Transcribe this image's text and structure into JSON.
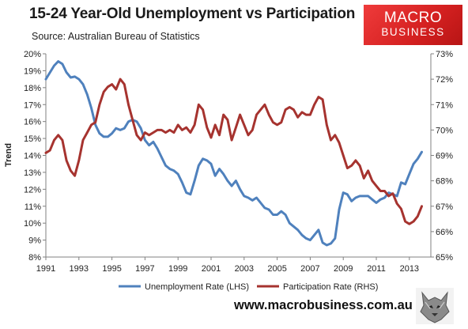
{
  "header": {
    "title": "15-24 Year-Old Unemployment vs Participation",
    "subtitle": "Source: Australian Bureau of Statistics"
  },
  "logo": {
    "line1": "MACRO",
    "line2": "BUSINESS",
    "bg": "#d42020"
  },
  "footer": {
    "url": "www.macrobusiness.com.au"
  },
  "chart_data": {
    "type": "line",
    "ylabel": "Trend",
    "x_ticks": [
      "1991",
      "1993",
      "1995",
      "1997",
      "1999",
      "2001",
      "2003",
      "2005",
      "2007",
      "2009",
      "2011",
      "2013"
    ],
    "xlim": [
      1991,
      2014.3
    ],
    "y_left": {
      "ticks": [
        "8%",
        "9%",
        "10%",
        "11%",
        "12%",
        "13%",
        "14%",
        "15%",
        "16%",
        "17%",
        "18%",
        "19%",
        "20%"
      ],
      "lim": [
        8,
        20
      ]
    },
    "y_right": {
      "ticks": [
        "65%",
        "66%",
        "67%",
        "68%",
        "69%",
        "70%",
        "71%",
        "72%",
        "73%"
      ],
      "lim": [
        65,
        73
      ]
    },
    "grid": false,
    "legend_position": "bottom",
    "series": [
      {
        "name": "Unemployment Rate (LHS)",
        "axis": "left",
        "color": "#4f81bd",
        "points": [
          [
            1991.0,
            18.5
          ],
          [
            1991.25,
            18.9
          ],
          [
            1991.5,
            19.3
          ],
          [
            1991.75,
            19.55
          ],
          [
            1992.0,
            19.4
          ],
          [
            1992.25,
            18.9
          ],
          [
            1992.5,
            18.6
          ],
          [
            1992.75,
            18.65
          ],
          [
            1993.0,
            18.5
          ],
          [
            1993.25,
            18.2
          ],
          [
            1993.5,
            17.6
          ],
          [
            1993.75,
            16.8
          ],
          [
            1994.0,
            15.8
          ],
          [
            1994.25,
            15.3
          ],
          [
            1994.5,
            15.1
          ],
          [
            1994.75,
            15.1
          ],
          [
            1995.0,
            15.3
          ],
          [
            1995.25,
            15.6
          ],
          [
            1995.5,
            15.5
          ],
          [
            1995.75,
            15.6
          ],
          [
            1996.0,
            16.0
          ],
          [
            1996.25,
            16.1
          ],
          [
            1996.5,
            16.0
          ],
          [
            1996.75,
            15.6
          ],
          [
            1997.0,
            14.9
          ],
          [
            1997.25,
            14.6
          ],
          [
            1997.5,
            14.8
          ],
          [
            1997.75,
            14.4
          ],
          [
            1998.0,
            13.9
          ],
          [
            1998.25,
            13.4
          ],
          [
            1998.5,
            13.2
          ],
          [
            1998.75,
            13.1
          ],
          [
            1999.0,
            12.9
          ],
          [
            1999.25,
            12.4
          ],
          [
            1999.5,
            11.8
          ],
          [
            1999.75,
            11.7
          ],
          [
            2000.0,
            12.5
          ],
          [
            2000.25,
            13.4
          ],
          [
            2000.5,
            13.8
          ],
          [
            2000.75,
            13.7
          ],
          [
            2001.0,
            13.5
          ],
          [
            2001.25,
            12.8
          ],
          [
            2001.5,
            13.2
          ],
          [
            2001.75,
            12.9
          ],
          [
            2002.0,
            12.5
          ],
          [
            2002.25,
            12.2
          ],
          [
            2002.5,
            12.5
          ],
          [
            2002.75,
            12.0
          ],
          [
            2003.0,
            11.6
          ],
          [
            2003.25,
            11.5
          ],
          [
            2003.5,
            11.35
          ],
          [
            2003.75,
            11.5
          ],
          [
            2004.0,
            11.2
          ],
          [
            2004.25,
            10.9
          ],
          [
            2004.5,
            10.8
          ],
          [
            2004.75,
            10.5
          ],
          [
            2005.0,
            10.5
          ],
          [
            2005.25,
            10.7
          ],
          [
            2005.5,
            10.5
          ],
          [
            2005.75,
            10.0
          ],
          [
            2006.0,
            9.8
          ],
          [
            2006.25,
            9.6
          ],
          [
            2006.5,
            9.3
          ],
          [
            2006.75,
            9.1
          ],
          [
            2007.0,
            9.0
          ],
          [
            2007.25,
            9.3
          ],
          [
            2007.5,
            9.6
          ],
          [
            2007.75,
            8.85
          ],
          [
            2008.0,
            8.7
          ],
          [
            2008.25,
            8.8
          ],
          [
            2008.5,
            9.1
          ],
          [
            2008.75,
            10.8
          ],
          [
            2009.0,
            11.8
          ],
          [
            2009.25,
            11.7
          ],
          [
            2009.5,
            11.3
          ],
          [
            2009.75,
            11.5
          ],
          [
            2010.0,
            11.6
          ],
          [
            2010.25,
            11.6
          ],
          [
            2010.5,
            11.6
          ],
          [
            2010.75,
            11.4
          ],
          [
            2011.0,
            11.2
          ],
          [
            2011.25,
            11.4
          ],
          [
            2011.5,
            11.5
          ],
          [
            2011.75,
            11.8
          ],
          [
            2012.0,
            11.7
          ],
          [
            2012.25,
            11.6
          ],
          [
            2012.5,
            12.4
          ],
          [
            2012.75,
            12.3
          ],
          [
            2013.0,
            12.9
          ],
          [
            2013.25,
            13.5
          ],
          [
            2013.5,
            13.8
          ],
          [
            2013.75,
            14.2
          ]
        ]
      },
      {
        "name": "Participation Rate (RHS)",
        "axis": "right",
        "color": "#a6332f",
        "points": [
          [
            1991.0,
            69.1
          ],
          [
            1991.25,
            69.2
          ],
          [
            1991.5,
            69.6
          ],
          [
            1991.75,
            69.8
          ],
          [
            1992.0,
            69.6
          ],
          [
            1992.25,
            68.8
          ],
          [
            1992.5,
            68.4
          ],
          [
            1992.75,
            68.2
          ],
          [
            1993.0,
            68.8
          ],
          [
            1993.25,
            69.6
          ],
          [
            1993.5,
            69.9
          ],
          [
            1993.75,
            70.2
          ],
          [
            1994.0,
            70.3
          ],
          [
            1994.25,
            71.0
          ],
          [
            1994.5,
            71.5
          ],
          [
            1994.75,
            71.7
          ],
          [
            1995.0,
            71.8
          ],
          [
            1995.25,
            71.6
          ],
          [
            1995.5,
            72.0
          ],
          [
            1995.75,
            71.8
          ],
          [
            1996.0,
            71.0
          ],
          [
            1996.25,
            70.4
          ],
          [
            1996.5,
            69.8
          ],
          [
            1996.75,
            69.6
          ],
          [
            1997.0,
            69.9
          ],
          [
            1997.25,
            69.8
          ],
          [
            1997.5,
            69.9
          ],
          [
            1997.75,
            70.0
          ],
          [
            1998.0,
            70.0
          ],
          [
            1998.25,
            69.9
          ],
          [
            1998.5,
            70.0
          ],
          [
            1998.75,
            69.9
          ],
          [
            1999.0,
            70.2
          ],
          [
            1999.25,
            70.0
          ],
          [
            1999.5,
            70.1
          ],
          [
            1999.75,
            69.9
          ],
          [
            2000.0,
            70.2
          ],
          [
            2000.25,
            71.0
          ],
          [
            2000.5,
            70.8
          ],
          [
            2000.75,
            70.1
          ],
          [
            2001.0,
            69.7
          ],
          [
            2001.25,
            70.2
          ],
          [
            2001.5,
            69.8
          ],
          [
            2001.75,
            70.6
          ],
          [
            2002.0,
            70.4
          ],
          [
            2002.25,
            69.6
          ],
          [
            2002.5,
            70.1
          ],
          [
            2002.75,
            70.6
          ],
          [
            2003.0,
            70.2
          ],
          [
            2003.25,
            69.8
          ],
          [
            2003.5,
            70.0
          ],
          [
            2003.75,
            70.6
          ],
          [
            2004.0,
            70.8
          ],
          [
            2004.25,
            71.0
          ],
          [
            2004.5,
            70.6
          ],
          [
            2004.75,
            70.3
          ],
          [
            2005.0,
            70.2
          ],
          [
            2005.25,
            70.3
          ],
          [
            2005.5,
            70.8
          ],
          [
            2005.75,
            70.9
          ],
          [
            2006.0,
            70.8
          ],
          [
            2006.25,
            70.5
          ],
          [
            2006.5,
            70.7
          ],
          [
            2006.75,
            70.6
          ],
          [
            2007.0,
            70.6
          ],
          [
            2007.25,
            71.0
          ],
          [
            2007.5,
            71.3
          ],
          [
            2007.75,
            71.2
          ],
          [
            2008.0,
            70.2
          ],
          [
            2008.25,
            69.6
          ],
          [
            2008.5,
            69.8
          ],
          [
            2008.75,
            69.5
          ],
          [
            2009.0,
            69.0
          ],
          [
            2009.25,
            68.5
          ],
          [
            2009.5,
            68.6
          ],
          [
            2009.75,
            68.8
          ],
          [
            2010.0,
            68.6
          ],
          [
            2010.25,
            68.1
          ],
          [
            2010.5,
            68.4
          ],
          [
            2010.75,
            68.0
          ],
          [
            2011.0,
            67.8
          ],
          [
            2011.25,
            67.6
          ],
          [
            2011.5,
            67.6
          ],
          [
            2011.75,
            67.4
          ],
          [
            2012.0,
            67.5
          ],
          [
            2012.25,
            67.1
          ],
          [
            2012.5,
            66.9
          ],
          [
            2012.75,
            66.4
          ],
          [
            2013.0,
            66.3
          ],
          [
            2013.25,
            66.4
          ],
          [
            2013.5,
            66.6
          ],
          [
            2013.75,
            67.0
          ]
        ]
      }
    ]
  }
}
